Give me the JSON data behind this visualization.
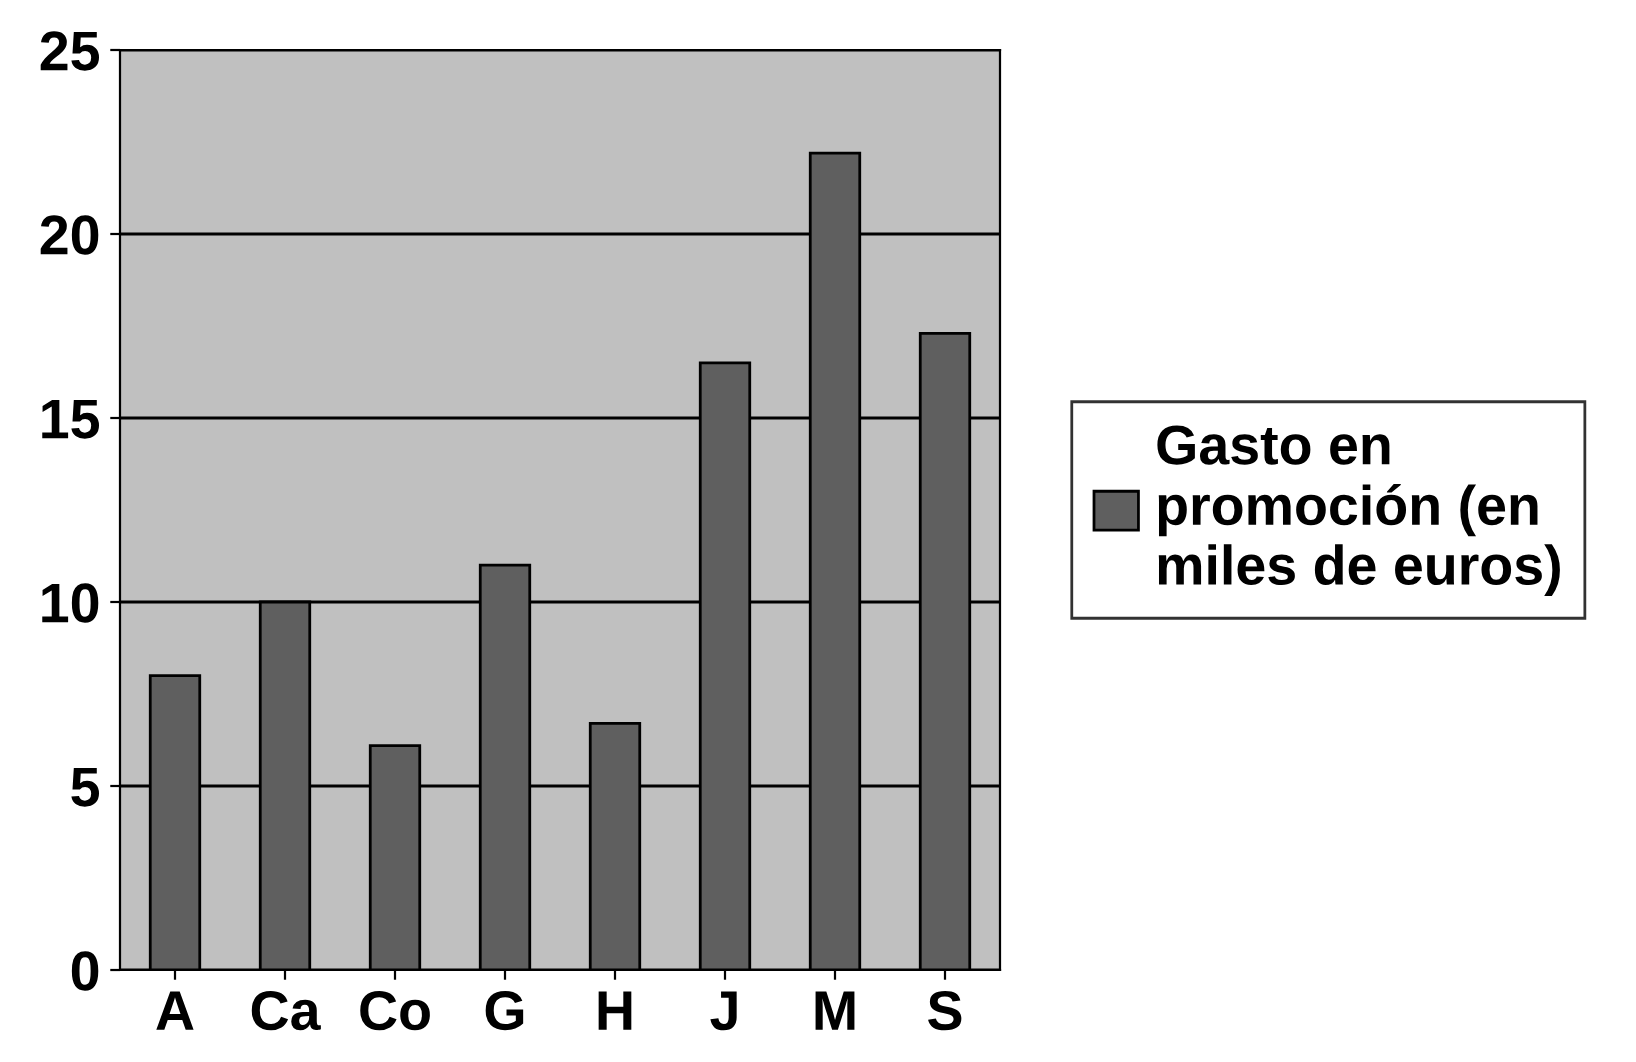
{
  "chart_data": {
    "type": "bar",
    "categories": [
      "A",
      "Ca",
      "Co",
      "G",
      "H",
      "J",
      "M",
      "S"
    ],
    "series": [
      {
        "name": "Gasto en\npromoción (en\nmiles de euros)",
        "color": "#5f5f5f",
        "values": [
          8,
          10,
          6.1,
          11,
          6.7,
          16.5,
          22.2,
          17.3
        ]
      }
    ],
    "ylim": [
      0,
      25
    ],
    "yticks": [
      0,
      5,
      10,
      15,
      20,
      25
    ],
    "grid": "y",
    "legend": "right"
  }
}
